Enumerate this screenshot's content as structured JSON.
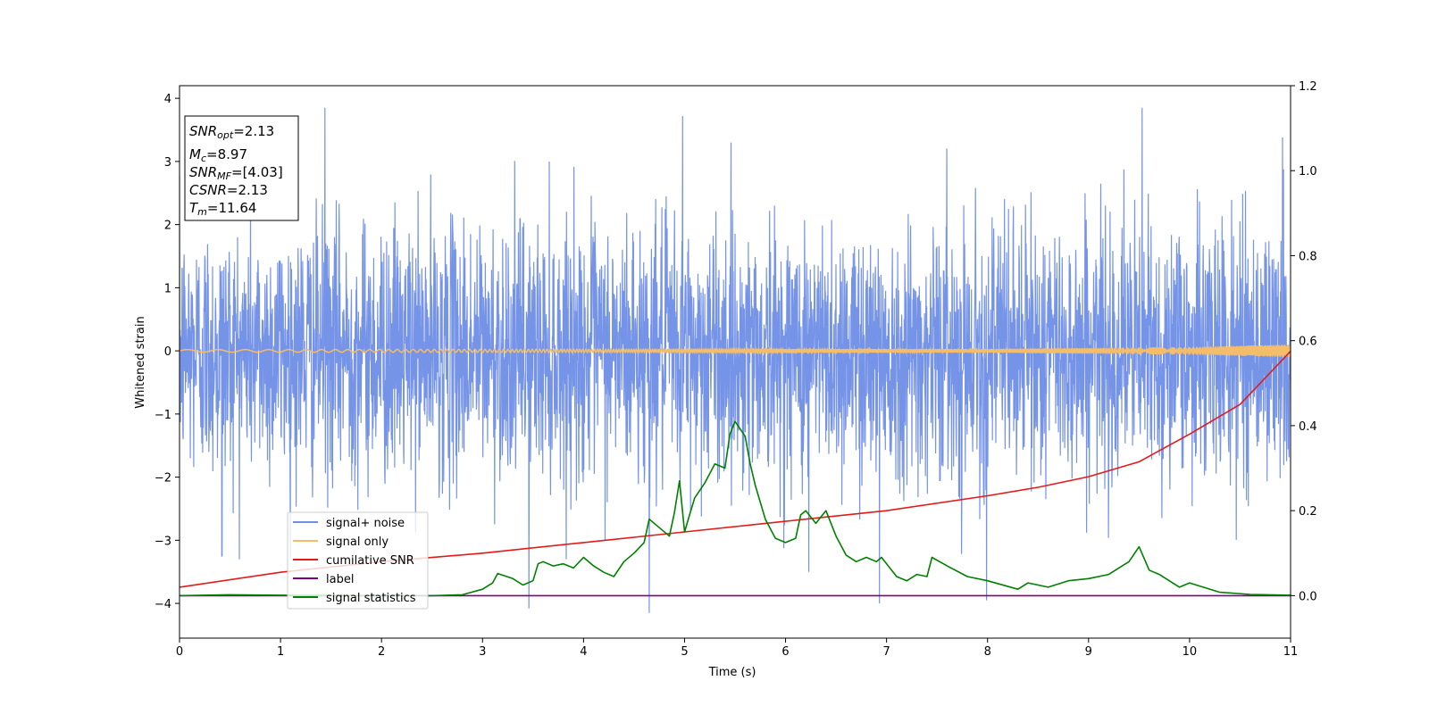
{
  "chart_data": {
    "type": "line",
    "title": "",
    "xlabel": "Time (s)",
    "ylabel": "Whitened strain",
    "xlim": [
      0,
      11
    ],
    "ylim": [
      -4.55,
      4.2
    ],
    "y2lim": [
      -0.1,
      1.2
    ],
    "grid": false,
    "legend_position": "lower-left",
    "x_ticks": [
      "0",
      "1",
      "2",
      "3",
      "4",
      "5",
      "6",
      "7",
      "8",
      "9",
      "10",
      "11"
    ],
    "y_ticks": [
      "4",
      "3",
      "2",
      "1",
      "0",
      "−1",
      "−2",
      "−3",
      "−4"
    ],
    "y2_ticks": [
      "1.2",
      "1.0",
      "0.8",
      "0.6",
      "0.4",
      "0.2",
      "0.0"
    ],
    "annotation": {
      "snr_opt": {
        "base": "SNR",
        "sub": "opt",
        "value": "=2.13"
      },
      "mc": {
        "base": "M",
        "sub": "c",
        "value": "=8.97"
      },
      "snr_mf": {
        "base": "SNR",
        "sub": "MF",
        "value": "=[4.03]"
      },
      "csnr": {
        "base": "CSNR",
        "sub": "",
        "value": "=2.13"
      },
      "tm": {
        "base": "T",
        "sub": "m",
        "value": "=11.64"
      }
    },
    "series": [
      {
        "name": "signal+ noise",
        "color": "#6f8ee6",
        "axis": "left",
        "description_shape": "dense noise, roughly +/-2 with spikes",
        "peaks": [
          [
            0.42,
            -3.25
          ],
          [
            1.44,
            3.85
          ],
          [
            3.46,
            -4.08
          ],
          [
            4.65,
            -4.15
          ],
          [
            4.98,
            3.72
          ],
          [
            6.23,
            -3.5
          ],
          [
            6.93,
            -4.0
          ],
          [
            7.99,
            -3.95
          ],
          [
            9.53,
            3.85
          ],
          [
            10.92,
            3.38
          ]
        ]
      },
      {
        "name": "signal only",
        "color": "#f4bd6a",
        "axis": "left",
        "amplitude_envelope": [
          [
            0,
            0.02
          ],
          [
            8,
            0.03
          ],
          [
            10,
            0.06
          ],
          [
            11,
            0.1
          ]
        ]
      },
      {
        "name": "cumilative SNR",
        "color": "#e41a1a",
        "axis": "right",
        "x": [
          0,
          1,
          2,
          3,
          4,
          5,
          6,
          7,
          8,
          8.5,
          9,
          9.5,
          10,
          10.5,
          11
        ],
        "y": [
          0.02,
          0.055,
          0.08,
          0.1,
          0.125,
          0.15,
          0.175,
          0.2,
          0.235,
          0.255,
          0.28,
          0.315,
          0.38,
          0.45,
          0.575
        ]
      },
      {
        "name": "label",
        "color": "#800080",
        "axis": "right",
        "x": [
          0,
          11
        ],
        "y": [
          0,
          0
        ]
      },
      {
        "name": "signal statistics",
        "color": "#008000",
        "axis": "right",
        "x": [
          0,
          0.5,
          1,
          2,
          2.5,
          2.8,
          3.0,
          3.1,
          3.15,
          3.3,
          3.4,
          3.5,
          3.55,
          3.6,
          3.7,
          3.8,
          3.9,
          4.0,
          4.1,
          4.2,
          4.3,
          4.4,
          4.5,
          4.6,
          4.65,
          4.75,
          4.85,
          4.9,
          4.95,
          5.0,
          5.05,
          5.1,
          5.2,
          5.3,
          5.4,
          5.45,
          5.5,
          5.6,
          5.65,
          5.7,
          5.8,
          5.9,
          6.0,
          6.1,
          6.15,
          6.2,
          6.3,
          6.35,
          6.4,
          6.5,
          6.6,
          6.7,
          6.8,
          6.9,
          6.95,
          7.1,
          7.2,
          7.3,
          7.4,
          7.45,
          7.6,
          7.8,
          8.0,
          8.3,
          8.4,
          8.6,
          8.8,
          9.0,
          9.2,
          9.3,
          9.4,
          9.5,
          9.6,
          9.7,
          9.9,
          10.0,
          10.3,
          10.6,
          11.0
        ],
        "y": [
          0.0,
          0.002,
          0.001,
          0.0,
          0.0,
          0.002,
          0.015,
          0.03,
          0.052,
          0.04,
          0.025,
          0.035,
          0.075,
          0.08,
          0.07,
          0.075,
          0.065,
          0.09,
          0.07,
          0.055,
          0.045,
          0.08,
          0.1,
          0.125,
          0.18,
          0.16,
          0.14,
          0.195,
          0.27,
          0.15,
          0.19,
          0.23,
          0.265,
          0.31,
          0.3,
          0.38,
          0.41,
          0.375,
          0.31,
          0.26,
          0.18,
          0.135,
          0.125,
          0.135,
          0.19,
          0.2,
          0.17,
          0.185,
          0.2,
          0.14,
          0.095,
          0.08,
          0.09,
          0.08,
          0.09,
          0.045,
          0.035,
          0.05,
          0.045,
          0.09,
          0.07,
          0.045,
          0.035,
          0.015,
          0.03,
          0.02,
          0.035,
          0.04,
          0.05,
          0.065,
          0.08,
          0.115,
          0.06,
          0.05,
          0.02,
          0.03,
          0.008,
          0.003,
          0.001
        ]
      }
    ]
  }
}
